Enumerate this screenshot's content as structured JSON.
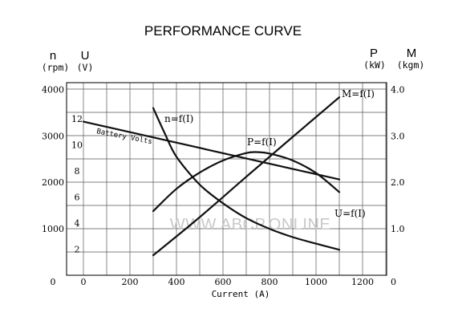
{
  "chart_data": {
    "type": "line",
    "title": "PERFORMANCE CURVE",
    "xlabel": "Current (A)",
    "x_ticks": [
      "0",
      "200",
      "400",
      "600",
      "800",
      "1000",
      "1200"
    ],
    "xlim": [
      0,
      1350
    ],
    "left_axis_n": {
      "symbol": "n",
      "unit": "(rpm)",
      "ticks": [
        "1000",
        "2000",
        "3000",
        "4000"
      ],
      "range": [
        0,
        4000
      ]
    },
    "left_axis_u": {
      "symbol": "U",
      "unit": "(V)",
      "ticks": [
        "2",
        "4",
        "6",
        "8",
        "10",
        "12"
      ],
      "range": [
        0,
        14
      ]
    },
    "right_axis": {
      "symbol_p": "P",
      "unit_p": "(kW)",
      "symbol_m": "M",
      "unit_m": "(kgm)",
      "ticks": [
        "1.0",
        "2.0",
        "3.0",
        "4.0"
      ],
      "range": [
        0,
        4.0
      ]
    },
    "origin_labels": {
      "left": "0",
      "right": "0"
    },
    "grid": true,
    "series": [
      {
        "name": "n=f(I)",
        "axis": "n",
        "x": [
          300,
          350,
          400,
          500,
          600,
          700,
          800,
          900,
          1000,
          1100
        ],
        "y": [
          3600,
          3050,
          2550,
          1950,
          1550,
          1230,
          1000,
          820,
          680,
          550
        ]
      },
      {
        "name": "P=f(I)",
        "axis": "right",
        "x": [
          300,
          400,
          500,
          600,
          700,
          750,
          800,
          900,
          1000,
          1100
        ],
        "y": [
          1.38,
          1.86,
          2.21,
          2.47,
          2.63,
          2.65,
          2.62,
          2.47,
          2.2,
          1.79
        ]
      },
      {
        "name": "M=f(I)",
        "axis": "right",
        "x": [
          300,
          500,
          700,
          900,
          1100
        ],
        "y": [
          0.43,
          1.25,
          2.12,
          2.98,
          3.83
        ]
      },
      {
        "name": "U=f(I)",
        "axis": "u",
        "x": [
          0,
          1100
        ],
        "y": [
          11.78,
          7.35
        ]
      }
    ],
    "annotations": [
      "Battery Volts"
    ],
    "watermark": "WWW.ABCP.ONLINE"
  }
}
